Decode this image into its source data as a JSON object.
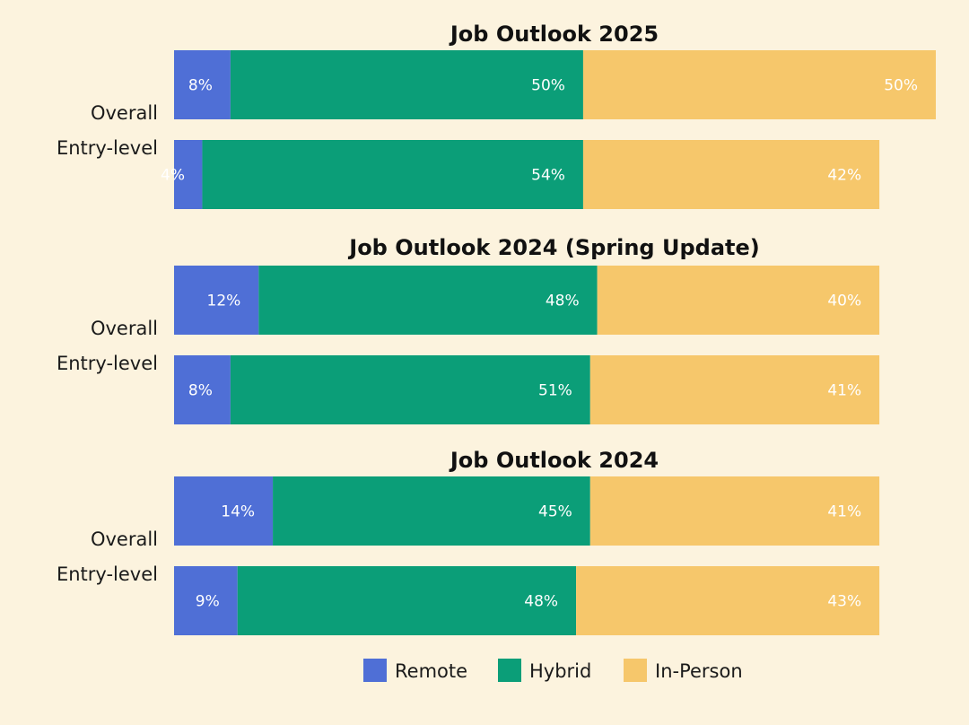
{
  "chart_data": {
    "type": "bar",
    "orientation": "horizontal",
    "stacked": true,
    "xlim": [
      0,
      108
    ],
    "grid": false,
    "legend_placement": "bottom",
    "series": [
      {
        "name": "Remote",
        "color": "#4f6fd6"
      },
      {
        "name": "Hybrid",
        "color": "#0b9e78"
      },
      {
        "name": "In-Person",
        "color": "#f6c76b"
      }
    ],
    "groups": [
      {
        "title": "Job Outlook 2025",
        "rows": [
          {
            "label": "Overall",
            "values": [
              8,
              50,
              50
            ],
            "labels": [
              "8%",
              "50%",
              "50%"
            ]
          },
          {
            "label": "Entry-level",
            "values": [
              4,
              54,
              42
            ],
            "labels": [
              "4%",
              "54%",
              "42%"
            ]
          }
        ]
      },
      {
        "title": "Job Outlook 2024 (Spring Update)",
        "rows": [
          {
            "label": "Overall",
            "values": [
              12,
              48,
              40
            ],
            "labels": [
              "12%",
              "48%",
              "40%"
            ]
          },
          {
            "label": "Entry-level",
            "values": [
              8,
              51,
              41
            ],
            "labels": [
              "8%",
              "51%",
              "41%"
            ]
          }
        ]
      },
      {
        "title": "Job Outlook 2024",
        "rows": [
          {
            "label": "Overall",
            "values": [
              14,
              45,
              41
            ],
            "labels": [
              "14%",
              "45%",
              "41%"
            ]
          },
          {
            "label": "Entry-level",
            "values": [
              9,
              48,
              43
            ],
            "labels": [
              "9%",
              "48%",
              "43%"
            ]
          }
        ]
      }
    ]
  }
}
